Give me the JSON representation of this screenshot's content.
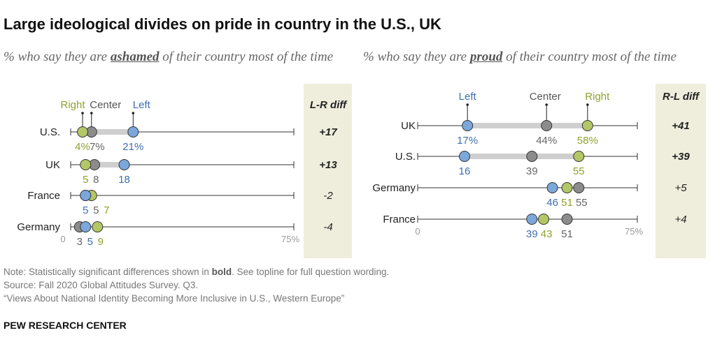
{
  "title": "Large ideological divides on pride in country in the U.S., UK",
  "left_panel": {
    "subtitle_pre": "% who say they are ",
    "subtitle_key": "ashamed",
    "subtitle_post": " of their country most of the time"
  },
  "right_panel": {
    "subtitle_pre": "% who say they are ",
    "subtitle_key": "proud",
    "subtitle_post": " of their country most of the time"
  },
  "colors": {
    "left": "#7ba7db",
    "center": "#8c8c8c",
    "right": "#b3c766",
    "left_text": "#3d6fae",
    "right_text": "#8fa22e",
    "diff_bg": "#efeedd",
    "bar": "#cfcfcf"
  },
  "notes": {
    "note_pre": "Note: Statistically significant differences shown in ",
    "note_bold": "bold",
    "note_post": ". See topline for full question wording.",
    "source": "Source: Fall 2020 Global Attitudes Survey. Q3.",
    "report": "“Views About National Identity Becoming More Inclusive in U.S., Western Europe”"
  },
  "brand": "PEW RESEARCH CENTER",
  "chart_data": [
    {
      "type": "dot",
      "title": "% who say they are ashamed of their country most of the time",
      "legend": {
        "left": "Left",
        "center": "Center",
        "right": "Right"
      },
      "diff_header": "L-R diff",
      "xlim": [
        0,
        75
      ],
      "axis_min_label": "0",
      "axis_max_label": "75%",
      "countries": [
        {
          "name": "U.S.",
          "left": 21,
          "center": 7,
          "right": 4,
          "left_label": "21%",
          "center_label": "7%",
          "right_label": "4%",
          "diff": "+17",
          "significant": true
        },
        {
          "name": "UK",
          "left": 18,
          "center": 8,
          "right": 5,
          "left_label": "18",
          "center_label": "8",
          "right_label": "5",
          "diff": "+13",
          "significant": true
        },
        {
          "name": "France",
          "left": 5,
          "center": 5,
          "right": 7,
          "left_label": "5",
          "center_label": "5",
          "right_label": "7",
          "diff": "-2",
          "significant": false
        },
        {
          "name": "Germany",
          "left": 5,
          "center": 3,
          "right": 9,
          "left_label": "5",
          "center_label": "3",
          "right_label": "9",
          "diff": "-4",
          "significant": false
        }
      ]
    },
    {
      "type": "dot",
      "title": "% who say they are proud of their country most of the time",
      "legend": {
        "left": "Left",
        "center": "Center",
        "right": "Right"
      },
      "diff_header": "R-L diff",
      "xlim": [
        0,
        75
      ],
      "axis_min_label": "0",
      "axis_max_label": "75%",
      "countries": [
        {
          "name": "UK",
          "left": 17,
          "center": 44,
          "right": 58,
          "left_label": "17%",
          "center_label": "44%",
          "right_label": "58%",
          "diff": "+41",
          "significant": true
        },
        {
          "name": "U.S.",
          "left": 16,
          "center": 39,
          "right": 55,
          "left_label": "16",
          "center_label": "39",
          "right_label": "55",
          "diff": "+39",
          "significant": true
        },
        {
          "name": "Germany",
          "left": 46,
          "center": 55,
          "right": 51,
          "left_label": "46",
          "center_label": "55",
          "right_label": "51",
          "diff": "+5",
          "significant": false
        },
        {
          "name": "France",
          "left": 39,
          "center": 51,
          "right": 43,
          "left_label": "39",
          "center_label": "51",
          "right_label": "43",
          "diff": "+4",
          "significant": false
        }
      ]
    }
  ]
}
